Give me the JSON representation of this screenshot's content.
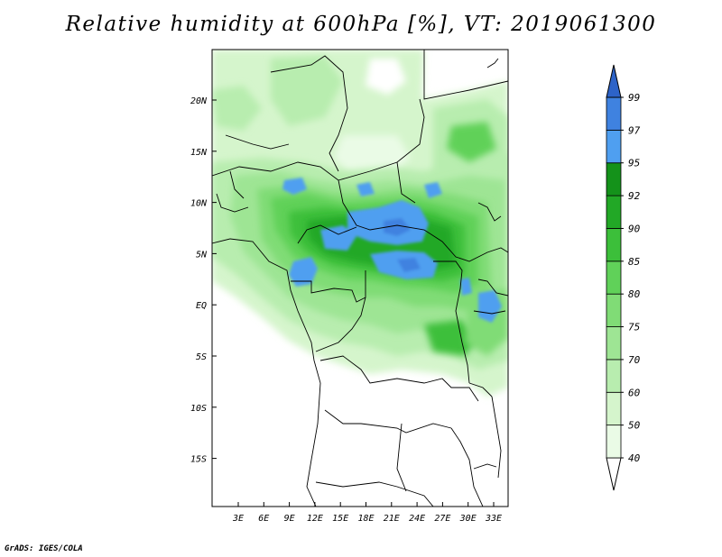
{
  "title": "Relative humidity at 600hPa [%], VT: 2019061300",
  "credit": "GrADS: IGES/COLA",
  "map": {
    "lat_labels": [
      "20N",
      "15N",
      "10N",
      "5N",
      "EQ",
      "5S",
      "10S",
      "15S"
    ],
    "lon_labels": [
      "3E",
      "6E",
      "9E",
      "12E",
      "15E",
      "18E",
      "21E",
      "24E",
      "27E",
      "30E",
      "33E"
    ]
  },
  "colorbar": {
    "levels": [
      "40",
      "50",
      "60",
      "70",
      "75",
      "80",
      "85",
      "90",
      "92",
      "95",
      "97",
      "99"
    ],
    "colors": [
      "#ffffff",
      "#eafbe6",
      "#d5f5cc",
      "#b8edaf",
      "#9ee594",
      "#80dc76",
      "#60d159",
      "#3cbf3a",
      "#22a826",
      "#14921a",
      "#4f9ff0",
      "#3f82e0",
      "#2d63c8"
    ]
  }
}
